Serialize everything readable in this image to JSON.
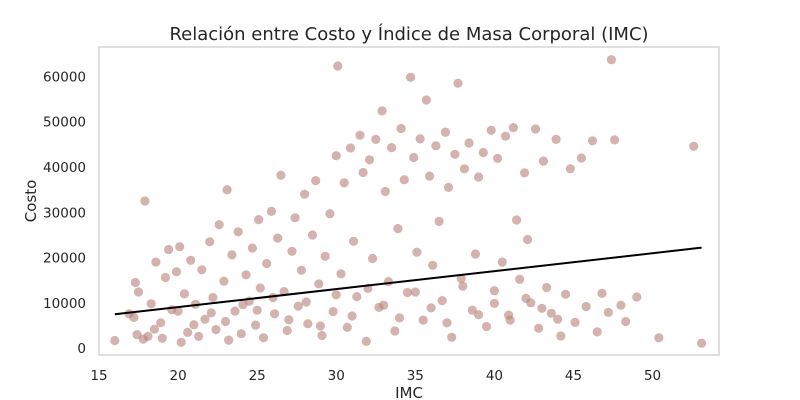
{
  "chart_data": {
    "type": "scatter",
    "title": "Relación entre Costo y Índice de Masa Corporal (IMC)",
    "xlabel": "IMC",
    "ylabel": "Costo",
    "xlim": [
      15.0,
      54.2
    ],
    "ylim": [
      -1500,
      66500
    ],
    "xticks": [
      "15",
      "20",
      "25",
      "30",
      "35",
      "40",
      "45",
      "50"
    ],
    "yticks": [
      "0",
      "10000",
      "20000",
      "30000",
      "40000",
      "50000",
      "60000"
    ],
    "grid": false,
    "legend": "none",
    "point_color": "#b87f78",
    "point_opacity": 0.6,
    "trend_color": "#000000",
    "trend_line": {
      "x": [
        16.0,
        53.1
      ],
      "y": [
        7500,
        22200
      ]
    },
    "series": [
      {
        "points": [
          [
            16.0,
            1700
          ],
          [
            17.2,
            6800
          ],
          [
            17.4,
            3000
          ],
          [
            17.8,
            2000
          ],
          [
            17.3,
            14500
          ],
          [
            17.5,
            12400
          ],
          [
            17.9,
            32500
          ],
          [
            18.3,
            9800
          ],
          [
            18.5,
            4200
          ],
          [
            18.6,
            19000
          ],
          [
            18.9,
            5600
          ],
          [
            19.0,
            2200
          ],
          [
            19.2,
            15600
          ],
          [
            19.4,
            21800
          ],
          [
            19.6,
            8500
          ],
          [
            19.9,
            16900
          ],
          [
            20.1,
            22400
          ],
          [
            20.2,
            1300
          ],
          [
            20.4,
            12000
          ],
          [
            20.6,
            3500
          ],
          [
            20.8,
            19400
          ],
          [
            21.1,
            9700
          ],
          [
            21.3,
            2600
          ],
          [
            21.5,
            17300
          ],
          [
            21.7,
            6400
          ],
          [
            22.0,
            23500
          ],
          [
            22.2,
            11200
          ],
          [
            22.4,
            4100
          ],
          [
            22.6,
            27300
          ],
          [
            22.9,
            14800
          ],
          [
            23.1,
            35000
          ],
          [
            23.2,
            1800
          ],
          [
            23.4,
            20600
          ],
          [
            23.6,
            8200
          ],
          [
            23.8,
            25700
          ],
          [
            24.0,
            3200
          ],
          [
            24.3,
            16200
          ],
          [
            24.5,
            10400
          ],
          [
            24.7,
            22100
          ],
          [
            24.9,
            5100
          ],
          [
            25.1,
            28400
          ],
          [
            25.2,
            13300
          ],
          [
            25.4,
            2300
          ],
          [
            25.6,
            18700
          ],
          [
            25.9,
            30200
          ],
          [
            26.1,
            7600
          ],
          [
            26.3,
            24300
          ],
          [
            26.5,
            38200
          ],
          [
            26.7,
            12500
          ],
          [
            26.9,
            3900
          ],
          [
            27.2,
            21400
          ],
          [
            27.4,
            28800
          ],
          [
            27.6,
            9300
          ],
          [
            27.8,
            17200
          ],
          [
            28.0,
            34000
          ],
          [
            28.2,
            5400
          ],
          [
            28.5,
            25000
          ],
          [
            28.7,
            37000
          ],
          [
            28.9,
            14200
          ],
          [
            29.1,
            2800
          ],
          [
            29.3,
            20300
          ],
          [
            29.6,
            29700
          ],
          [
            29.8,
            8100
          ],
          [
            30.0,
            42500
          ],
          [
            30.1,
            62300
          ],
          [
            30.3,
            16400
          ],
          [
            30.5,
            36500
          ],
          [
            30.7,
            4600
          ],
          [
            30.9,
            44200
          ],
          [
            31.1,
            23600
          ],
          [
            31.3,
            11400
          ],
          [
            31.5,
            47000
          ],
          [
            31.7,
            38800
          ],
          [
            31.9,
            1500
          ],
          [
            32.1,
            41600
          ],
          [
            32.3,
            19800
          ],
          [
            32.5,
            46100
          ],
          [
            32.7,
            9000
          ],
          [
            32.9,
            52400
          ],
          [
            33.1,
            34600
          ],
          [
            33.3,
            14700
          ],
          [
            33.5,
            44300
          ],
          [
            33.7,
            3800
          ],
          [
            33.9,
            26400
          ],
          [
            34.1,
            48500
          ],
          [
            34.3,
            37200
          ],
          [
            34.5,
            12300
          ],
          [
            34.7,
            59800
          ],
          [
            34.9,
            42100
          ],
          [
            35.1,
            21200
          ],
          [
            35.3,
            46200
          ],
          [
            35.5,
            6200
          ],
          [
            35.7,
            54800
          ],
          [
            35.9,
            38000
          ],
          [
            36.1,
            18300
          ],
          [
            36.3,
            44700
          ],
          [
            36.5,
            28000
          ],
          [
            36.7,
            10500
          ],
          [
            36.9,
            47700
          ],
          [
            37.1,
            35500
          ],
          [
            37.3,
            2400
          ],
          [
            37.5,
            42800
          ],
          [
            37.7,
            58500
          ],
          [
            37.9,
            15400
          ],
          [
            38.1,
            39600
          ],
          [
            38.4,
            45300
          ],
          [
            38.6,
            8400
          ],
          [
            38.8,
            20800
          ],
          [
            39.0,
            37800
          ],
          [
            39.3,
            43200
          ],
          [
            39.5,
            4800
          ],
          [
            39.8,
            48100
          ],
          [
            40.0,
            12700
          ],
          [
            40.2,
            41900
          ],
          [
            40.5,
            19000
          ],
          [
            40.7,
            46800
          ],
          [
            40.9,
            7300
          ],
          [
            41.2,
            48700
          ],
          [
            41.4,
            28300
          ],
          [
            41.6,
            15200
          ],
          [
            41.9,
            38700
          ],
          [
            42.1,
            24000
          ],
          [
            42.3,
            10000
          ],
          [
            42.6,
            48400
          ],
          [
            42.8,
            4400
          ],
          [
            43.1,
            41300
          ],
          [
            43.3,
            13400
          ],
          [
            43.6,
            7700
          ],
          [
            43.9,
            46100
          ],
          [
            44.2,
            2700
          ],
          [
            44.5,
            11900
          ],
          [
            44.8,
            39600
          ],
          [
            45.1,
            5700
          ],
          [
            45.5,
            42000
          ],
          [
            45.8,
            9200
          ],
          [
            46.2,
            45800
          ],
          [
            46.5,
            3600
          ],
          [
            46.8,
            12100
          ],
          [
            47.2,
            7900
          ],
          [
            47.4,
            63700
          ],
          [
            47.6,
            46000
          ],
          [
            48.0,
            9500
          ],
          [
            48.3,
            5900
          ],
          [
            49.0,
            11300
          ],
          [
            50.4,
            2300
          ],
          [
            52.6,
            44600
          ],
          [
            53.1,
            1100
          ],
          [
            16.9,
            7600
          ],
          [
            18.1,
            2600
          ],
          [
            20.0,
            8200
          ],
          [
            21.0,
            5200
          ],
          [
            22.1,
            7800
          ],
          [
            23.0,
            5900
          ],
          [
            24.1,
            9600
          ],
          [
            25.0,
            8400
          ],
          [
            26.0,
            11200
          ],
          [
            27.0,
            6300
          ],
          [
            28.1,
            10200
          ],
          [
            29.0,
            4900
          ],
          [
            30.0,
            11800
          ],
          [
            31.0,
            7100
          ],
          [
            32.0,
            13200
          ],
          [
            33.0,
            9500
          ],
          [
            34.0,
            6700
          ],
          [
            35.0,
            12400
          ],
          [
            36.0,
            8900
          ],
          [
            37.0,
            5600
          ],
          [
            38.0,
            13700
          ],
          [
            39.0,
            7400
          ],
          [
            40.0,
            9900
          ],
          [
            41.0,
            6200
          ],
          [
            42.0,
            11000
          ],
          [
            43.0,
            8800
          ],
          [
            44.0,
            6400
          ]
        ]
      }
    ]
  }
}
